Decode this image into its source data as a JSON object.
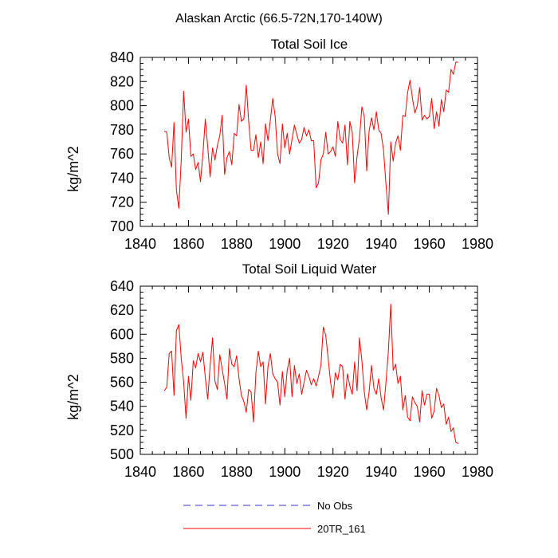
{
  "figure_title": "Alaskan Arctic (66.5-72N,170-140W)",
  "colors": {
    "model": "#ff0000",
    "obs": "#3333cc",
    "axis": "#000000"
  },
  "legend": [
    {
      "label": "No Obs",
      "style": "dashed",
      "color": "#3333cc"
    },
    {
      "label": "20TR_161",
      "style": "solid",
      "color": "#ff0000"
    }
  ],
  "chart_data": [
    {
      "type": "line",
      "title": "Total Soil Ice",
      "xlabel": "",
      "ylabel": "kg/m^2",
      "xlim": [
        1840,
        1980
      ],
      "ylim": [
        700,
        840
      ],
      "xticks": [
        1840,
        1860,
        1880,
        1900,
        1920,
        1940,
        1960,
        1980
      ],
      "yticks": [
        700,
        720,
        740,
        760,
        780,
        800,
        820,
        840
      ],
      "x_start": 1850,
      "series": [
        {
          "name": "20TR_161",
          "values": [
            779,
            778,
            757,
            749,
            786,
            730,
            715,
            755,
            812,
            778,
            789,
            758,
            760,
            747,
            753,
            737,
            760,
            789,
            766,
            741,
            765,
            755,
            767,
            775,
            792,
            743,
            757,
            762,
            751,
            777,
            775,
            801,
            787,
            789,
            817,
            787,
            763,
            763,
            776,
            757,
            770,
            752,
            785,
            771,
            788,
            806,
            791,
            760,
            752,
            785,
            765,
            777,
            760,
            772,
            784,
            776,
            769,
            772,
            782,
            775,
            780,
            771,
            771,
            732,
            736,
            755,
            760,
            778,
            760,
            762,
            766,
            758,
            787,
            772,
            769,
            784,
            751,
            787,
            778,
            736,
            758,
            773,
            799,
            791,
            746,
            779,
            790,
            780,
            795,
            780,
            777,
            763,
            735,
            710,
            770,
            754,
            769,
            775,
            763,
            792,
            791,
            811,
            821,
            806,
            794,
            800,
            815,
            788,
            792,
            789,
            791,
            806,
            781,
            795,
            783,
            805,
            795,
            813,
            811,
            830,
            826,
            836,
            836
          ]
        }
      ]
    },
    {
      "type": "line",
      "title": "Total Soil Liquid Water",
      "xlabel": "",
      "ylabel": "kg/m^2",
      "xlim": [
        1840,
        1980
      ],
      "ylim": [
        500,
        640
      ],
      "xticks": [
        1840,
        1860,
        1880,
        1900,
        1920,
        1940,
        1960,
        1980
      ],
      "yticks": [
        500,
        520,
        540,
        560,
        580,
        600,
        620,
        640
      ],
      "x_start": 1850,
      "series": [
        {
          "name": "20TR_161",
          "values": [
            553,
            556,
            584,
            586,
            549,
            603,
            608,
            580,
            560,
            530,
            565,
            545,
            578,
            572,
            584,
            577,
            585,
            564,
            546,
            574,
            597,
            561,
            554,
            583,
            571,
            559,
            546,
            588,
            575,
            573,
            582,
            563,
            549,
            544,
            535,
            554,
            552,
            527,
            568,
            586,
            573,
            577,
            542,
            573,
            584,
            567,
            563,
            560,
            541,
            569,
            548,
            570,
            580,
            548,
            574,
            559,
            567,
            550,
            560,
            570,
            565,
            558,
            563,
            557,
            565,
            574,
            606,
            599,
            580,
            560,
            547,
            568,
            562,
            575,
            573,
            546,
            567,
            557,
            550,
            577,
            553,
            597,
            578,
            552,
            537,
            552,
            574,
            555,
            550,
            563,
            547,
            537,
            560,
            586,
            625,
            570,
            575,
            559,
            565,
            537,
            549,
            531,
            528,
            548,
            543,
            540,
            527,
            553,
            541,
            550,
            550,
            530,
            536,
            555,
            549,
            539,
            542,
            525,
            531,
            519,
            522,
            510,
            509
          ]
        }
      ]
    }
  ]
}
